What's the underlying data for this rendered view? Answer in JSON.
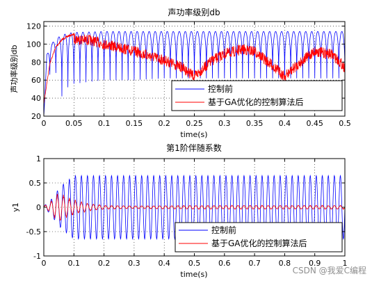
{
  "watermark": "CSDN @我爱C编程",
  "chart_data": [
    {
      "type": "line",
      "title": "声功率级别db",
      "xlabel": "time(s)",
      "ylabel": "声功率级别db",
      "xlim": [
        0,
        0.5
      ],
      "ylim": [
        20,
        125
      ],
      "xticks": [
        0,
        0.05,
        0.1,
        0.15,
        0.2,
        0.25,
        0.3,
        0.35,
        0.4,
        0.45,
        0.5
      ],
      "xtick_labels": [
        "0",
        "0.05",
        "0.1",
        "0.15",
        "0.2",
        "0.25",
        "0.3",
        "0.35",
        "0.4",
        "0.45",
        "0.5"
      ],
      "yticks": [
        20,
        40,
        60,
        80,
        100,
        120
      ],
      "ytick_labels": [
        "20",
        "40",
        "60",
        "80",
        "100",
        "120"
      ],
      "grid": true,
      "legend_position": "lower-right",
      "series": [
        {
          "name": "控制前",
          "color": "#0000ff",
          "x": [
            0,
            0.005,
            0.01,
            0.02,
            0.03,
            0.04,
            0.05,
            0.1,
            0.15,
            0.2,
            0.25,
            0.3,
            0.35,
            0.4,
            0.45,
            0.5
          ],
          "envelope_max": [
            20,
            88,
            98,
            106,
            110,
            112,
            113,
            114,
            114,
            114,
            114,
            114,
            114,
            114,
            114,
            114
          ],
          "envelope_min": [
            20,
            62,
            66,
            68,
            42,
            52,
            56,
            60,
            60,
            62,
            62,
            62,
            62,
            62,
            62,
            62
          ]
        },
        {
          "name": "基于GA优化的控制算法后",
          "color": "#ff0000",
          "x": [
            0,
            0.01,
            0.02,
            0.03,
            0.04,
            0.05,
            0.08,
            0.1,
            0.15,
            0.2,
            0.23,
            0.25,
            0.28,
            0.3,
            0.33,
            0.35,
            0.38,
            0.4,
            0.43,
            0.45,
            0.48,
            0.5
          ],
          "values": [
            35,
            80,
            98,
            106,
            110,
            112,
            110,
            106,
            98,
            88,
            80,
            70,
            88,
            95,
            100,
            98,
            82,
            70,
            88,
            98,
            94,
            80
          ]
        }
      ]
    },
    {
      "type": "line",
      "title": "第1阶伴随系数",
      "xlabel": "time(s)",
      "ylabel": "y1",
      "xlim": [
        0,
        1
      ],
      "ylim": [
        -1,
        1
      ],
      "xticks": [
        0,
        0.1,
        0.2,
        0.3,
        0.4,
        0.5,
        0.6,
        0.7,
        0.8,
        0.9,
        1
      ],
      "xtick_labels": [
        "0",
        "0.1",
        "0.2",
        "0.3",
        "0.4",
        "0.5",
        "0.6",
        "0.7",
        "0.8",
        "0.9",
        "1"
      ],
      "yticks": [
        -1,
        -0.5,
        0,
        0.5,
        1
      ],
      "ytick_labels": [
        "-1",
        "-0.5",
        "0",
        "0.5",
        "1"
      ],
      "grid": true,
      "legend_position": "lower-right",
      "series": [
        {
          "name": "控制前",
          "color": "#0000ff",
          "x": [
            0,
            0.02,
            0.04,
            0.06,
            0.08,
            0.1,
            0.2,
            0.4,
            0.6,
            0.8,
            1.0
          ],
          "amplitude": [
            0.03,
            0.12,
            0.3,
            0.45,
            0.55,
            0.65,
            0.65,
            0.65,
            0.65,
            0.65,
            0.65
          ],
          "cycles": 50
        },
        {
          "name": "基于GA优化的控制算法后",
          "color": "#ff0000",
          "x": [
            0,
            0.02,
            0.04,
            0.06,
            0.08,
            0.1,
            0.15,
            0.2,
            0.3,
            0.5,
            0.7,
            1.0
          ],
          "amplitude": [
            0.03,
            0.1,
            0.28,
            0.3,
            0.22,
            0.16,
            0.08,
            0.04,
            0.03,
            0.04,
            0.04,
            0.04
          ],
          "cycles": 50
        }
      ]
    }
  ]
}
